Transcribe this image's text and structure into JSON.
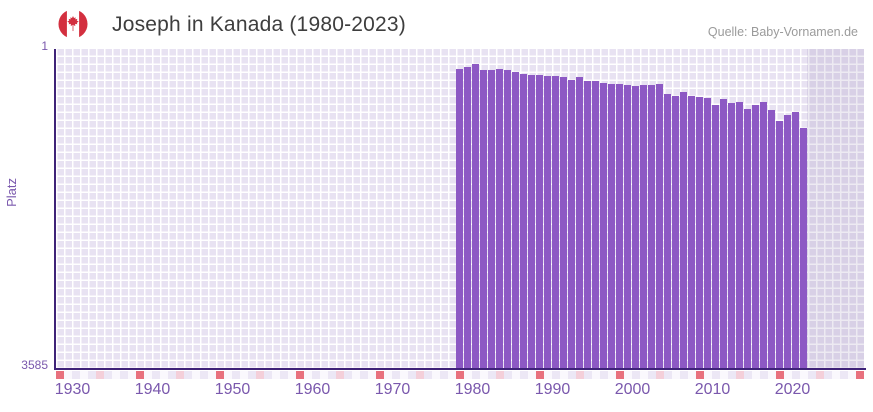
{
  "header": {
    "title": "Joseph in Kanada (1980-2023)",
    "source": "Quelle: Baby-Vornamen.de",
    "flag_icon": "canada-flag-icon"
  },
  "axes": {
    "y_label": "Platz",
    "y_top_tick": "1",
    "y_bottom_tick": "3585",
    "x_ticks": [
      "1930",
      "1940",
      "1950",
      "1960",
      "1970",
      "1980",
      "1990",
      "2000",
      "2010",
      "2020"
    ]
  },
  "colors": {
    "bar": "#8d59c4",
    "axis_line": "#3f2378",
    "tick_label": "#7a58ad",
    "title": "#3e3e3e",
    "source": "#9b9b9b",
    "plot_bg": "#e8e2f2",
    "grid": "#ffffff",
    "decade_cell": "#e8717e",
    "half_decade_cell": "#f4cfd9",
    "band_cell_a": "#ece7f5",
    "band_cell_b": "#faf8fd",
    "flag_red": "#d32f3f",
    "right_shade": "rgba(106,85,150,0.12)"
  },
  "chart_data": {
    "type": "bar",
    "title": "Joseph in Kanada (1980-2023)",
    "source": "Quelle: Baby-Vornamen.de",
    "xlabel": "",
    "ylabel": "Platz",
    "y_axis": {
      "min": 1,
      "max": 3585,
      "inverted": true
    },
    "x_axis": {
      "tick_labels": [
        "1930",
        "1940",
        "1950",
        "1960",
        "1970",
        "1980",
        "1990",
        "2000",
        "2010",
        "2020"
      ],
      "band_start": 1930,
      "band_end": 2030
    },
    "legend": "none",
    "grid": "on",
    "categories": [
      1980,
      1981,
      1982,
      1983,
      1984,
      1985,
      1986,
      1987,
      1988,
      1989,
      1990,
      1991,
      1992,
      1993,
      1994,
      1995,
      1996,
      1997,
      1998,
      1999,
      2000,
      2001,
      2002,
      2003,
      2004,
      2005,
      2006,
      2007,
      2008,
      2009,
      2010,
      2011,
      2012,
      2013,
      2014,
      2015,
      2016,
      2017,
      2018,
      2019,
      2020,
      2021,
      2022,
      2023
    ],
    "values": [
      214,
      189,
      162,
      229,
      229,
      218,
      226,
      252,
      267,
      282,
      285,
      293,
      293,
      308,
      335,
      301,
      349,
      349,
      375,
      386,
      386,
      391,
      402,
      394,
      394,
      386,
      499,
      515,
      476,
      515,
      529,
      544,
      619,
      551,
      600,
      582,
      664,
      619,
      582,
      675,
      795,
      731,
      701,
      874
    ]
  }
}
